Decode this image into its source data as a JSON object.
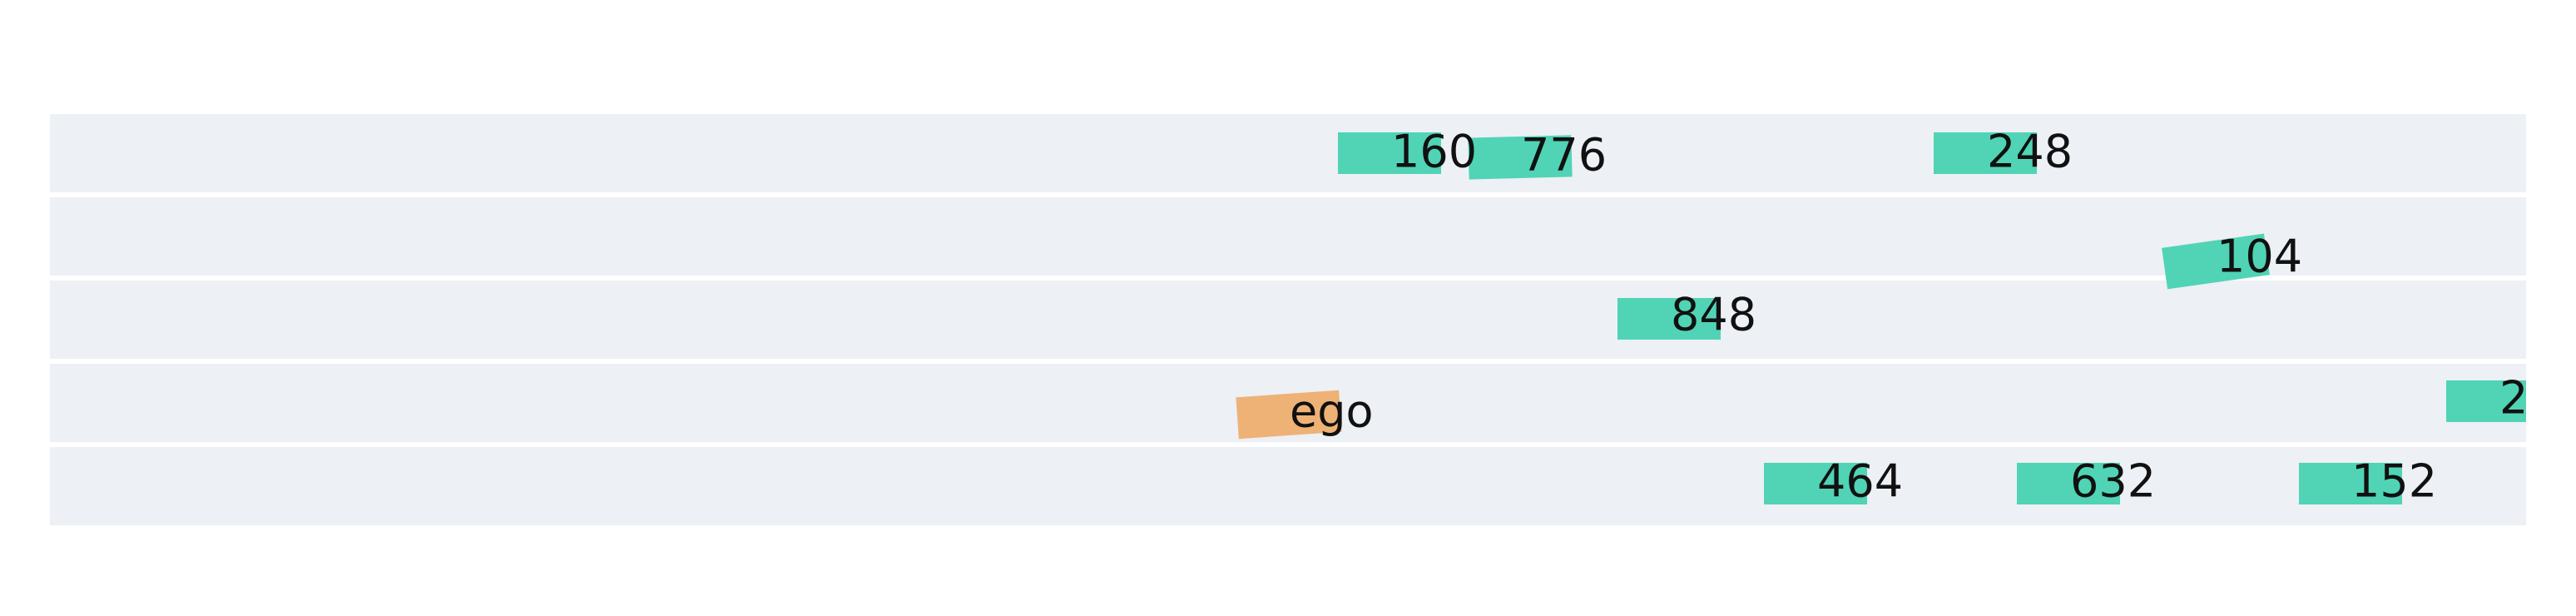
{
  "colors": {
    "background": "#ffffff",
    "lane": "#edf0f5",
    "lane_separator": "#ffffff",
    "ego_vehicle": "#eeb277",
    "other_vehicle": "#50d4b5",
    "label": "#111111"
  },
  "lanes": [
    {
      "index": 0
    },
    {
      "index": 1
    },
    {
      "index": 2
    },
    {
      "index": 3
    },
    {
      "index": 4
    }
  ],
  "vehicles": [
    {
      "id": "160",
      "label": "160",
      "type": "other"
    },
    {
      "id": "776",
      "label": "776",
      "type": "other"
    },
    {
      "id": "248",
      "label": "248",
      "type": "other"
    },
    {
      "id": "104",
      "label": "104",
      "type": "other"
    },
    {
      "id": "848",
      "label": "848",
      "type": "other"
    },
    {
      "id": "ego",
      "label": "ego",
      "type": "ego"
    },
    {
      "id": "2",
      "label": "2",
      "type": "other"
    },
    {
      "id": "464",
      "label": "464",
      "type": "other"
    },
    {
      "id": "632",
      "label": "632",
      "type": "other"
    },
    {
      "id": "152",
      "label": "152",
      "type": "other"
    }
  ]
}
